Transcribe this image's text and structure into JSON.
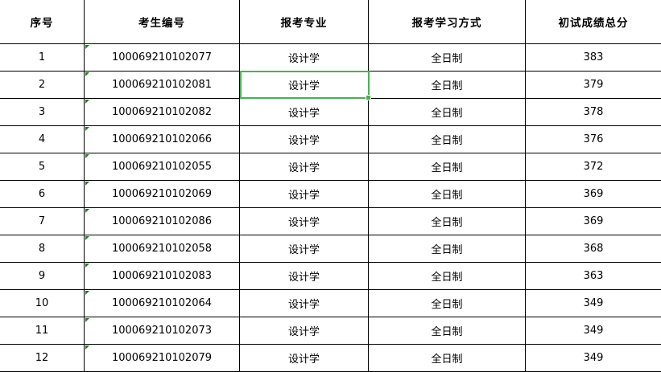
{
  "headers": [
    "序号",
    "考生编号",
    "报考专业",
    "报考学习方式",
    "初试成绩总分"
  ],
  "rows": [
    [
      "1",
      "100069210102077",
      "设计学",
      "全日制",
      "383"
    ],
    [
      "2",
      "100069210102081",
      "设计学",
      "全日制",
      "379"
    ],
    [
      "3",
      "100069210102082",
      "设计学",
      "全日制",
      "378"
    ],
    [
      "4",
      "100069210102066",
      "设计学",
      "全日制",
      "376"
    ],
    [
      "5",
      "100069210102055",
      "设计学",
      "全日制",
      "372"
    ],
    [
      "6",
      "100069210102069",
      "设计学",
      "全日制",
      "369"
    ],
    [
      "7",
      "100069210102086",
      "设计学",
      "全日制",
      "369"
    ],
    [
      "8",
      "100069210102058",
      "设计学",
      "全日制",
      "368"
    ],
    [
      "9",
      "100069210102083",
      "设计学",
      "全日制",
      "363"
    ],
    [
      "10",
      "100069210102064",
      "设计学",
      "全日制",
      "349"
    ],
    [
      "11",
      "100069210102073",
      "设计学",
      "全日制",
      "349"
    ],
    [
      "12",
      "100069210102079",
      "设计学",
      "全日制",
      "349"
    ]
  ],
  "selected_cell": {
    "row": 2,
    "column": "报考专业"
  },
  "colors": {
    "selection": "#4caf50",
    "text_marker": "#1e7b1e"
  }
}
